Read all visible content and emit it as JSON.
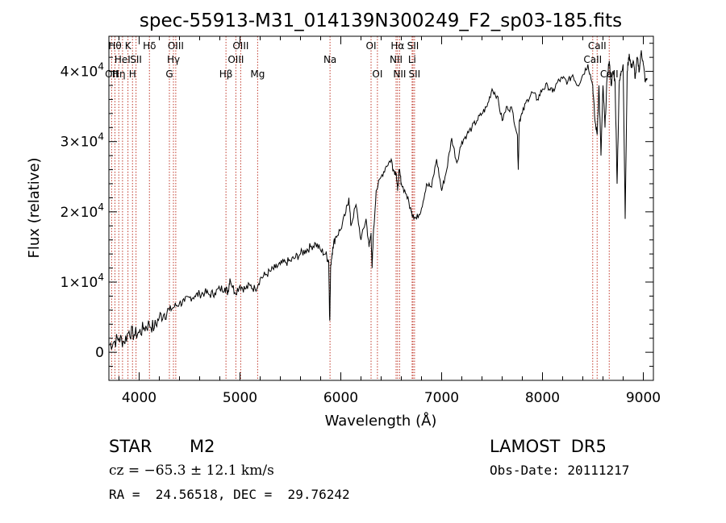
{
  "chart_data": {
    "type": "line",
    "title": "spec-55913-M31_014139N300249_F2_sp03-185.fits",
    "xlabel": "Wavelength (Å)",
    "ylabel": "Flux (relative)",
    "xlim": [
      3700,
      9100
    ],
    "ylim": [
      -4000,
      45000
    ],
    "x_ticks": [
      {
        "value": 4000,
        "label": "4000"
      },
      {
        "value": 5000,
        "label": "5000"
      },
      {
        "value": 6000,
        "label": "6000"
      },
      {
        "value": 7000,
        "label": "7000"
      },
      {
        "value": 8000,
        "label": "8000"
      },
      {
        "value": 9000,
        "label": "9000"
      }
    ],
    "y_ticks": [
      {
        "value": 0,
        "mant": "0",
        "exp": ""
      },
      {
        "value": 10000,
        "mant": "1×10",
        "exp": "4"
      },
      {
        "value": 20000,
        "mant": "2×10",
        "exp": "4"
      },
      {
        "value": 30000,
        "mant": "3×10",
        "exp": "4"
      },
      {
        "value": 40000,
        "mant": "4×10",
        "exp": "4"
      }
    ],
    "series": [
      {
        "color": "#000000",
        "x": [
          3700,
          3750,
          3800,
          3850,
          3900,
          3950,
          4000,
          4050,
          4100,
          4150,
          4200,
          4250,
          4300,
          4350,
          4400,
          4450,
          4500,
          4550,
          4600,
          4650,
          4700,
          4750,
          4800,
          4850,
          4880,
          4900,
          4950,
          5000,
          5050,
          5100,
          5150,
          5200,
          5250,
          5300,
          5350,
          5400,
          5450,
          5500,
          5550,
          5600,
          5650,
          5700,
          5750,
          5800,
          5850,
          5880,
          5890,
          5900,
          5920,
          5950,
          6000,
          6050,
          6080,
          6100,
          6150,
          6200,
          6250,
          6280,
          6300,
          6310,
          6320,
          6350,
          6400,
          6450,
          6500,
          6520,
          6550,
          6563,
          6580,
          6600,
          6650,
          6700,
          6720,
          6750,
          6800,
          6850,
          6900,
          6950,
          7000,
          7050,
          7100,
          7150,
          7200,
          7250,
          7300,
          7350,
          7400,
          7450,
          7500,
          7550,
          7600,
          7650,
          7700,
          7750,
          7760,
          7770,
          7800,
          7850,
          7900,
          7950,
          8000,
          8050,
          8100,
          8150,
          8200,
          8250,
          8300,
          8350,
          8400,
          8450,
          8498,
          8520,
          8542,
          8560,
          8580,
          8600,
          8620,
          8640,
          8662,
          8680,
          8700,
          8720,
          8740,
          8760,
          8780,
          8800,
          8820,
          8840,
          8860,
          8880,
          8900,
          8920,
          8940,
          8960,
          8980,
          9000,
          9020,
          9040
        ],
        "y": [
          1000,
          1500,
          2000,
          1500,
          3000,
          2500,
          2800,
          3500,
          4000,
          3500,
          5000,
          5500,
          6000,
          6500,
          7000,
          7200,
          7800,
          8000,
          8300,
          8500,
          8200,
          8500,
          9000,
          9200,
          8500,
          10500,
          8500,
          9500,
          9000,
          9500,
          9000,
          10500,
          11000,
          11500,
          12000,
          12500,
          12800,
          13000,
          13500,
          14000,
          14500,
          15000,
          15500,
          14500,
          14000,
          13000,
          4500,
          12500,
          15000,
          16500,
          17500,
          20000,
          22000,
          18000,
          21000,
          16000,
          19000,
          15000,
          17000,
          12000,
          16000,
          23000,
          25000,
          26500,
          27500,
          26000,
          25500,
          23000,
          26000,
          24000,
          22500,
          20000,
          19500,
          19000,
          20500,
          24000,
          23500,
          27500,
          23000,
          26000,
          30500,
          27000,
          30000,
          31000,
          32000,
          33000,
          34000,
          35000,
          37500,
          36500,
          33000,
          35000,
          34500,
          31000,
          26000,
          33000,
          34000,
          36000,
          37000,
          36000,
          37500,
          38000,
          37000,
          38500,
          39000,
          38500,
          39500,
          38000,
          39500,
          41000,
          38000,
          33000,
          31000,
          38000,
          28000,
          38000,
          32000,
          39000,
          41500,
          38000,
          40000,
          38500,
          24000,
          38000,
          40000,
          41000,
          19000,
          40000,
          42500,
          40500,
          41500,
          39000,
          42000,
          40000,
          43000,
          41000,
          38500,
          39000
        ]
      }
    ],
    "lines": [
      {
        "wl": 3727,
        "row": 2,
        "label": "OII"
      },
      {
        "wl": 3760,
        "row": 0,
        "label": "Hθ"
      },
      {
        "wl": 3798,
        "row": 2,
        "label": "Hη"
      },
      {
        "wl": 3835,
        "row": 1,
        "label": "HeI"
      },
      {
        "wl": 3889,
        "row": 0,
        "label": "K"
      },
      {
        "wl": 3934,
        "row": 2,
        "label": "H"
      },
      {
        "wl": 3969,
        "row": 1,
        "label": "SII"
      },
      {
        "wl": 4102,
        "row": 0,
        "label": "Hδ"
      },
      {
        "wl": 4300,
        "row": 2,
        "label": "G"
      },
      {
        "wl": 4340,
        "row": 1,
        "label": "Hγ"
      },
      {
        "wl": 4363,
        "row": 0,
        "label": "OIII"
      },
      {
        "wl": 4861,
        "row": 2,
        "label": "Hβ"
      },
      {
        "wl": 4959,
        "row": 1,
        "label": "OIII"
      },
      {
        "wl": 5007,
        "row": 0,
        "label": "OIII"
      },
      {
        "wl": 5175,
        "row": 2,
        "label": "Mg"
      },
      {
        "wl": 5893,
        "row": 1,
        "label": "Na"
      },
      {
        "wl": 6300,
        "row": 0,
        "label": "OI"
      },
      {
        "wl": 6363,
        "row": 2,
        "label": "OI"
      },
      {
        "wl": 6548,
        "row": 1,
        "label": "NII"
      },
      {
        "wl": 6563,
        "row": 0,
        "label": "Hα"
      },
      {
        "wl": 6583,
        "row": 2,
        "label": "NII"
      },
      {
        "wl": 6707,
        "row": 1,
        "label": "Li"
      },
      {
        "wl": 6716,
        "row": 0,
        "label": "SII"
      },
      {
        "wl": 6731,
        "row": 2,
        "label": "SII"
      },
      {
        "wl": 8498,
        "row": 1,
        "label": "CaII"
      },
      {
        "wl": 8542,
        "row": 0,
        "label": "CaII"
      },
      {
        "wl": 8662,
        "row": 2,
        "label": "CaII"
      }
    ]
  },
  "info": {
    "class_label": "STAR",
    "subclass": "M2",
    "survey": "LAMOST  DR5",
    "velocity": "cz = −65.3 ± 12.1 km/s",
    "obs_date": "Obs-Date: 20111217",
    "coords": "RA =  24.56518, DEC =  29.76242"
  }
}
